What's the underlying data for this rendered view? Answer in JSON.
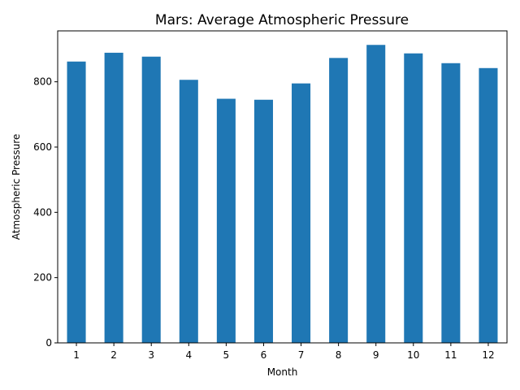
{
  "chart_data": {
    "type": "bar",
    "title": "Mars:  Average Atmospheric Pressure",
    "xlabel": "Month",
    "ylabel": "Atmospheric Pressure",
    "categories": [
      "1",
      "2",
      "3",
      "4",
      "5",
      "6",
      "7",
      "8",
      "9",
      "10",
      "11",
      "12"
    ],
    "values": [
      862,
      889,
      877,
      806,
      748,
      745,
      795,
      873,
      913,
      887,
      857,
      842
    ],
    "ylim": [
      0,
      956
    ],
    "yticks": [
      0,
      200,
      400,
      600,
      800
    ],
    "yticklabels": [
      "0",
      "200",
      "400",
      "600",
      "800"
    ],
    "grid": false,
    "bar_color": "#1f77b4"
  }
}
